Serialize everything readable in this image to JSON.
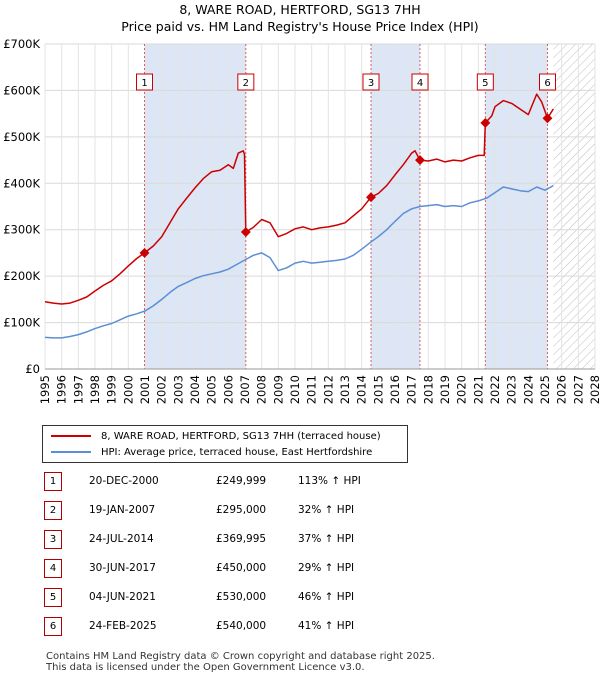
{
  "title_line1": "8, WARE ROAD, HERTFORD, SG13 7HH",
  "title_line2": "Price paid vs. HM Land Registry's House Price Index (HPI)",
  "colors": {
    "property": "#cc0000",
    "hpi": "#5b8ed6",
    "shade": "#dce6f5",
    "marker_border": "#cc0000"
  },
  "chart_data": {
    "type": "line",
    "title": "Price paid vs. HM Land Registry's House Price Index (HPI)",
    "xlim": [
      1995,
      2028
    ],
    "ylim": [
      0,
      700000
    ],
    "x_ticks": [
      "1995",
      "1996",
      "1997",
      "1998",
      "1999",
      "2000",
      "2001",
      "2002",
      "2003",
      "2004",
      "2005",
      "2006",
      "2007",
      "2008",
      "2009",
      "2010",
      "2011",
      "2012",
      "2013",
      "2014",
      "2015",
      "2016",
      "2017",
      "2018",
      "2019",
      "2020",
      "2021",
      "2022",
      "2023",
      "2024",
      "2025",
      "2026",
      "2027",
      "2028"
    ],
    "y_ticks": [
      {
        "value": 0,
        "label": "£0"
      },
      {
        "value": 100000,
        "label": "£100K"
      },
      {
        "value": 200000,
        "label": "£200K"
      },
      {
        "value": 300000,
        "label": "£300K"
      },
      {
        "value": 400000,
        "label": "£400K"
      },
      {
        "value": 500000,
        "label": "£500K"
      },
      {
        "value": 600000,
        "label": "£600K"
      },
      {
        "value": 700000,
        "label": "£700K"
      }
    ],
    "forecast_start": 2025.5,
    "series": [
      {
        "name": "8, WARE ROAD, HERTFORD, SG13 7HH (terraced house)",
        "points": [
          [
            1995.0,
            145000
          ],
          [
            1995.5,
            142000
          ],
          [
            1996.0,
            140000
          ],
          [
            1996.5,
            142000
          ],
          [
            1997.0,
            148000
          ],
          [
            1997.5,
            155000
          ],
          [
            1998.0,
            168000
          ],
          [
            1998.5,
            180000
          ],
          [
            1999.0,
            190000
          ],
          [
            1999.5,
            205000
          ],
          [
            2000.0,
            222000
          ],
          [
            2000.5,
            238000
          ],
          [
            2000.97,
            249999
          ],
          [
            2001.5,
            265000
          ],
          [
            2002.0,
            285000
          ],
          [
            2002.5,
            315000
          ],
          [
            2003.0,
            345000
          ],
          [
            2003.5,
            368000
          ],
          [
            2004.0,
            390000
          ],
          [
            2004.5,
            410000
          ],
          [
            2005.0,
            425000
          ],
          [
            2005.5,
            428000
          ],
          [
            2006.0,
            440000
          ],
          [
            2006.3,
            432000
          ],
          [
            2006.6,
            465000
          ],
          [
            2006.9,
            470000
          ],
          [
            2006.97,
            462000
          ],
          [
            2007.05,
            295000
          ],
          [
            2007.5,
            305000
          ],
          [
            2008.0,
            322000
          ],
          [
            2008.5,
            315000
          ],
          [
            2009.0,
            285000
          ],
          [
            2009.5,
            292000
          ],
          [
            2010.0,
            302000
          ],
          [
            2010.5,
            306000
          ],
          [
            2011.0,
            300000
          ],
          [
            2011.5,
            304000
          ],
          [
            2012.0,
            306000
          ],
          [
            2012.5,
            310000
          ],
          [
            2013.0,
            315000
          ],
          [
            2013.5,
            330000
          ],
          [
            2014.0,
            345000
          ],
          [
            2014.56,
            369995
          ],
          [
            2015.0,
            378000
          ],
          [
            2015.5,
            395000
          ],
          [
            2016.0,
            418000
          ],
          [
            2016.5,
            440000
          ],
          [
            2017.0,
            465000
          ],
          [
            2017.2,
            470000
          ],
          [
            2017.5,
            450000
          ],
          [
            2018.0,
            448000
          ],
          [
            2018.5,
            452000
          ],
          [
            2019.0,
            446000
          ],
          [
            2019.5,
            450000
          ],
          [
            2020.0,
            448000
          ],
          [
            2020.5,
            455000
          ],
          [
            2021.0,
            460000
          ],
          [
            2021.35,
            460000
          ],
          [
            2021.42,
            530000
          ],
          [
            2021.8,
            545000
          ],
          [
            2022.0,
            565000
          ],
          [
            2022.5,
            578000
          ],
          [
            2023.0,
            572000
          ],
          [
            2023.5,
            560000
          ],
          [
            2024.0,
            548000
          ],
          [
            2024.5,
            592000
          ],
          [
            2024.8,
            575000
          ],
          [
            2025.15,
            540000
          ],
          [
            2025.5,
            560000
          ]
        ]
      },
      {
        "name": "HPI: Average price, terraced house, East Hertfordshire",
        "points": [
          [
            1995.0,
            68000
          ],
          [
            1995.5,
            67000
          ],
          [
            1996.0,
            67000
          ],
          [
            1996.5,
            70000
          ],
          [
            1997.0,
            74000
          ],
          [
            1997.5,
            80000
          ],
          [
            1998.0,
            87000
          ],
          [
            1998.5,
            93000
          ],
          [
            1999.0,
            98000
          ],
          [
            1999.5,
            106000
          ],
          [
            2000.0,
            114000
          ],
          [
            2000.5,
            119000
          ],
          [
            2001.0,
            125000
          ],
          [
            2001.5,
            136000
          ],
          [
            2002.0,
            150000
          ],
          [
            2002.5,
            165000
          ],
          [
            2003.0,
            178000
          ],
          [
            2003.5,
            186000
          ],
          [
            2004.0,
            195000
          ],
          [
            2004.5,
            201000
          ],
          [
            2005.0,
            205000
          ],
          [
            2005.5,
            209000
          ],
          [
            2006.0,
            215000
          ],
          [
            2006.5,
            225000
          ],
          [
            2007.0,
            235000
          ],
          [
            2007.5,
            245000
          ],
          [
            2008.0,
            250000
          ],
          [
            2008.5,
            240000
          ],
          [
            2009.0,
            212000
          ],
          [
            2009.5,
            218000
          ],
          [
            2010.0,
            228000
          ],
          [
            2010.5,
            232000
          ],
          [
            2011.0,
            228000
          ],
          [
            2011.5,
            230000
          ],
          [
            2012.0,
            232000
          ],
          [
            2012.5,
            234000
          ],
          [
            2013.0,
            237000
          ],
          [
            2013.5,
            245000
          ],
          [
            2014.0,
            258000
          ],
          [
            2014.5,
            272000
          ],
          [
            2015.0,
            285000
          ],
          [
            2015.5,
            300000
          ],
          [
            2016.0,
            318000
          ],
          [
            2016.5,
            335000
          ],
          [
            2017.0,
            345000
          ],
          [
            2017.5,
            350000
          ],
          [
            2018.0,
            352000
          ],
          [
            2018.5,
            354000
          ],
          [
            2019.0,
            350000
          ],
          [
            2019.5,
            352000
          ],
          [
            2020.0,
            350000
          ],
          [
            2020.5,
            358000
          ],
          [
            2021.0,
            362000
          ],
          [
            2021.5,
            368000
          ],
          [
            2022.0,
            380000
          ],
          [
            2022.5,
            392000
          ],
          [
            2023.0,
            388000
          ],
          [
            2023.5,
            384000
          ],
          [
            2024.0,
            382000
          ],
          [
            2024.5,
            392000
          ],
          [
            2025.0,
            385000
          ],
          [
            2025.5,
            395000
          ]
        ]
      }
    ],
    "sales": [
      {
        "id": "1",
        "x": 2000.97,
        "price": 249999
      },
      {
        "id": "2",
        "x": 2007.05,
        "price": 295000
      },
      {
        "id": "3",
        "x": 2014.56,
        "price": 369995
      },
      {
        "id": "4",
        "x": 2017.5,
        "price": 450000
      },
      {
        "id": "5",
        "x": 2021.42,
        "price": 530000
      },
      {
        "id": "6",
        "x": 2025.15,
        "price": 540000
      }
    ]
  },
  "legend": {
    "property_label": "8, WARE ROAD, HERTFORD, SG13 7HH (terraced house)",
    "hpi_label": "HPI: Average price, terraced house, East Hertfordshire"
  },
  "sales_table": [
    {
      "num": "1",
      "date": "20-DEC-2000",
      "price": "£249,999",
      "hpi": "113% ↑ HPI"
    },
    {
      "num": "2",
      "date": "19-JAN-2007",
      "price": "£295,000",
      "hpi": "32% ↑ HPI"
    },
    {
      "num": "3",
      "date": "24-JUL-2014",
      "price": "£369,995",
      "hpi": "37% ↑ HPI"
    },
    {
      "num": "4",
      "date": "30-JUN-2017",
      "price": "£450,000",
      "hpi": "29% ↑ HPI"
    },
    {
      "num": "5",
      "date": "04-JUN-2021",
      "price": "£530,000",
      "hpi": "46% ↑ HPI"
    },
    {
      "num": "6",
      "date": "24-FEB-2025",
      "price": "£540,000",
      "hpi": "41% ↑ HPI"
    }
  ],
  "footer_line1": "Contains HM Land Registry data © Crown copyright and database right 2025.",
  "footer_line2": "This data is licensed under the Open Government Licence v3.0."
}
